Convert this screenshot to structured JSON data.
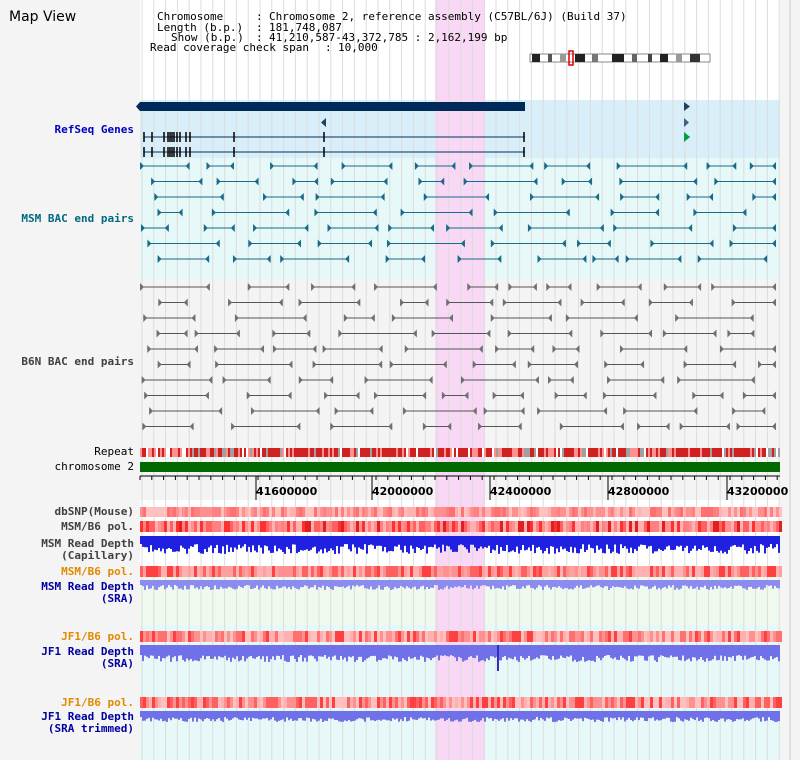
{
  "title": "Map View",
  "info": {
    "chromosome_label": "Chromosome",
    "chromosome_value": "Chromosome 2, reference assembly (C57BL/6J) (Build 37)",
    "length_label": "Length (b.p.)",
    "length_value": "181,748,087",
    "show_label": "Show (b.p.)",
    "show_value": "41,210,587-43,372,785 : 2,162,199 bp",
    "coverage_label": "Read coverage check span",
    "coverage_value": "10,000"
  },
  "tracks": {
    "refseq": "RefSeq Genes",
    "msm_bac": "MSM BAC end pairs",
    "b6n_bac": "B6N BAC end pairs",
    "repeat": "Repeat",
    "chromosome": "chromosome 2",
    "dbsnp": "dbSNP(Mouse)",
    "msm_pol1": "MSM/B6 pol.",
    "msm_depth_cap_1": "MSM Read Depth",
    "msm_depth_cap_2": "(Capillary)",
    "msm_pol2": "MSM/B6 pol.",
    "msm_depth_sra_1": "MSM Read Depth",
    "msm_depth_sra_2": "(SRA)",
    "jf1_pol1": "JF1/B6 pol.",
    "jf1_depth_sra_1": "JF1 Read Depth",
    "jf1_depth_sra_2": "(SRA)",
    "jf1_pol2": "JF1/B6 pol.",
    "jf1_depth_trim_1": "JF1 Read Depth",
    "jf1_depth_trim_2": "(SRA trimmed)"
  },
  "axis": {
    "ticks": [
      "41600000",
      "42000000",
      "42400000",
      "42800000",
      "43200000"
    ]
  },
  "colors": {
    "highlight": "#f8d8f4",
    "refseq_bg": "#d8eef8",
    "msm_bg": "#e6f8f8",
    "b6n_bg": "#f4f4f4",
    "refseq_text": "#0000c0",
    "msm_text": "#006a80",
    "b6n_text": "#404040",
    "orange_text": "#e08a00",
    "blue_text": "#0000a0",
    "chromosome_bar": "#006a00"
  }
}
